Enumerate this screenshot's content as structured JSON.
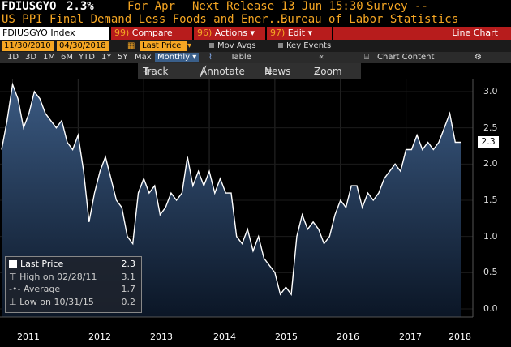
{
  "header": {
    "ticker": "FDIUSGYO",
    "value": "2.3%",
    "for_label": "For Apr",
    "next_release": "Next Release 13 Jun 15:30",
    "survey": "Survey --",
    "description": "US PPI Final Demand Less Foods and Ener...",
    "source": "Bureau of Labor Statistics"
  },
  "toolbar1": {
    "index_label": "FDIUSGYO Index",
    "compare_num": "99)",
    "compare_label": "Compare",
    "actions_num": "96)",
    "actions_label": "Actions ▾",
    "edit_num": "97)",
    "edit_label": "Edit ▾",
    "chart_type": "Line Chart"
  },
  "toolbar2": {
    "start_date": "11/30/2010",
    "end_date": "04/30/2018",
    "price_field": "Last Price",
    "mov_avgs": "Mov Avgs",
    "key_events": "Key Events"
  },
  "toolbar3": {
    "ranges": [
      "1D",
      "3D",
      "1M",
      "6M",
      "YTD",
      "1Y",
      "5Y",
      "Max"
    ],
    "frequency": "Monthly ▾",
    "table": "Table",
    "collapse": "«",
    "chart_content": "Chart Content",
    "gear": "⚙"
  },
  "chart_toolbar": {
    "track": "Track",
    "annotate": "Annotate",
    "news": "News",
    "zoom": "Zoom"
  },
  "legend": {
    "last_label": "Last Price",
    "last_value": "2.3",
    "high_label": "High on 02/28/11",
    "high_value": "3.1",
    "avg_label": "Average",
    "avg_value": "1.7",
    "low_label": "Low on 10/31/15",
    "low_value": "0.2"
  },
  "last_tag": "2.3",
  "colors": {
    "line": "#ffffff",
    "area_top": "#3b5a82",
    "area_bottom": "#0b1626",
    "accent": "#f5a623",
    "menu_red": "#b71c1c"
  },
  "chart_data": {
    "type": "area",
    "frequency": "monthly",
    "start": "2010-11",
    "end": "2018-04",
    "y_ticks": [
      "3.0",
      "2.5",
      "2.0",
      "1.5",
      "1.0",
      "0.5",
      "0.0"
    ],
    "x_ticks": [
      "2011",
      "2012",
      "2013",
      "2014",
      "2015",
      "2016",
      "2017",
      "2018"
    ],
    "ylim": [
      -0.1,
      3.2
    ],
    "values": [
      2.2,
      2.6,
      3.1,
      2.9,
      2.5,
      2.7,
      3.0,
      2.9,
      2.7,
      2.6,
      2.5,
      2.6,
      2.3,
      2.2,
      2.4,
      1.9,
      1.2,
      1.6,
      1.9,
      2.1,
      1.8,
      1.5,
      1.4,
      1.0,
      0.9,
      1.6,
      1.8,
      1.6,
      1.7,
      1.3,
      1.4,
      1.6,
      1.5,
      1.6,
      2.1,
      1.7,
      1.9,
      1.7,
      1.9,
      1.6,
      1.8,
      1.6,
      1.6,
      1.0,
      0.9,
      1.1,
      0.8,
      1.0,
      0.7,
      0.6,
      0.5,
      0.2,
      0.3,
      0.2,
      1.0,
      1.3,
      1.1,
      1.2,
      1.1,
      0.9,
      1.0,
      1.3,
      1.5,
      1.4,
      1.7,
      1.7,
      1.4,
      1.6,
      1.5,
      1.6,
      1.8,
      1.9,
      2.0,
      1.9,
      2.2,
      2.2,
      2.4,
      2.2,
      2.3,
      2.2,
      2.3,
      2.5,
      2.7,
      2.3,
      2.3
    ]
  }
}
